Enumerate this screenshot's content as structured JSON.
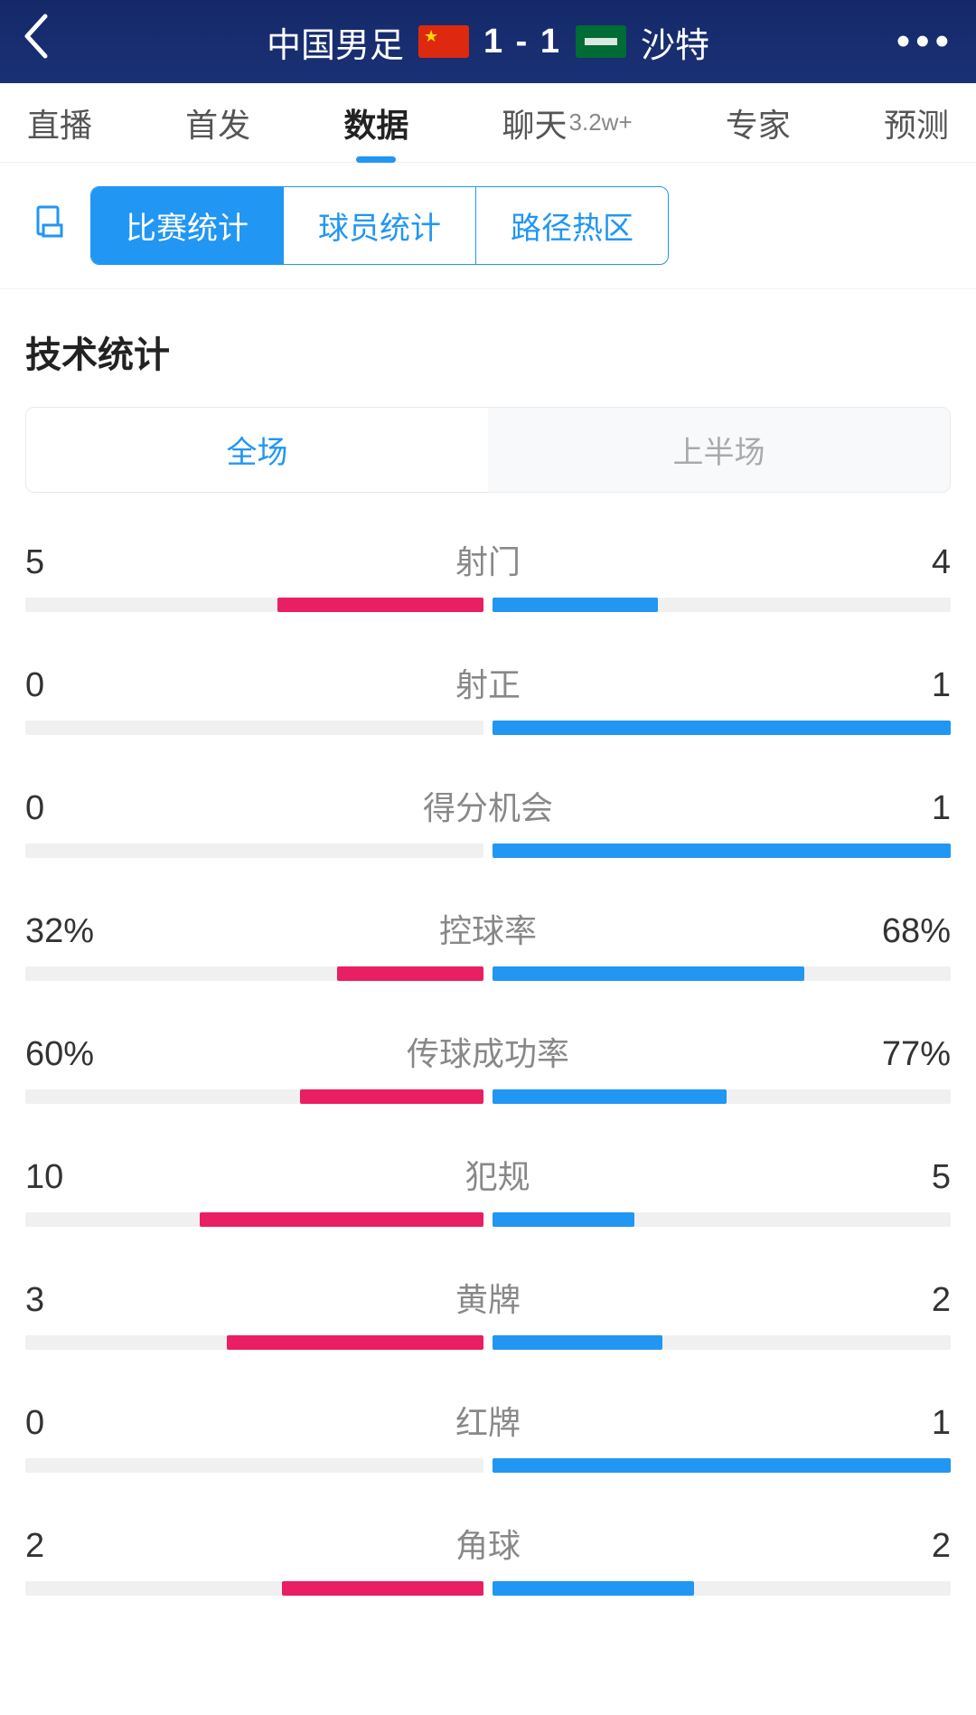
{
  "colors": {
    "header_bg": "#1a3175",
    "primary": "#2196f3",
    "home_bar": "#e91e63",
    "away_bar": "#2196f3",
    "bar_track": "#f0f0f0",
    "text_primary": "#222222",
    "text_muted": "#888888"
  },
  "header": {
    "home_team": "中国男足",
    "away_team": "沙特",
    "score": "1 - 1",
    "home_flag": "cn",
    "away_flag": "sa"
  },
  "nav_tabs": [
    {
      "label": "直播",
      "active": false
    },
    {
      "label": "首发",
      "active": false
    },
    {
      "label": "数据",
      "active": true
    },
    {
      "label": "聊天",
      "badge": "3.2w+",
      "active": false
    },
    {
      "label": "专家",
      "active": false
    },
    {
      "label": "预测",
      "active": false
    }
  ],
  "sub_tabs": [
    {
      "label": "比赛统计",
      "active": true
    },
    {
      "label": "球员统计",
      "active": false
    },
    {
      "label": "路径热区",
      "active": false
    }
  ],
  "section_title": "技术统计",
  "period_tabs": [
    {
      "label": "全场",
      "active": true
    },
    {
      "label": "上半场",
      "active": false
    }
  ],
  "stats": [
    {
      "name": "射门",
      "home": "5",
      "away": "4",
      "home_pct": 45,
      "away_pct": 36
    },
    {
      "name": "射正",
      "home": "0",
      "away": "1",
      "home_pct": 0,
      "away_pct": 100
    },
    {
      "name": "得分机会",
      "home": "0",
      "away": "1",
      "home_pct": 0,
      "away_pct": 100
    },
    {
      "name": "控球率",
      "home": "32%",
      "away": "68%",
      "home_pct": 32,
      "away_pct": 68
    },
    {
      "name": "传球成功率",
      "home": "60%",
      "away": "77%",
      "home_pct": 40,
      "away_pct": 51
    },
    {
      "name": "犯规",
      "home": "10",
      "away": "5",
      "home_pct": 62,
      "away_pct": 31
    },
    {
      "name": "黄牌",
      "home": "3",
      "away": "2",
      "home_pct": 56,
      "away_pct": 37
    },
    {
      "name": "红牌",
      "home": "0",
      "away": "1",
      "home_pct": 0,
      "away_pct": 100
    },
    {
      "name": "角球",
      "home": "2",
      "away": "2",
      "home_pct": 44,
      "away_pct": 44
    }
  ]
}
